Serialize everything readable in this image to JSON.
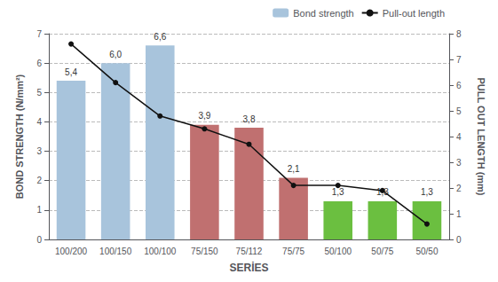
{
  "chart_data": {
    "type": "bar",
    "xlabel": "SERİES",
    "ylabel": "BOND STRENGTH (N/mm²)",
    "y2label": "PULL OUT LENGTH (mm)",
    "categories": [
      "100/200",
      "100/150",
      "100/100",
      "75/150",
      "75/112",
      "75/75",
      "50/100",
      "50/75",
      "50/50"
    ],
    "series": [
      {
        "name": "Bond strength",
        "type": "bar",
        "color": "#a8c4dc",
        "colors": [
          "#a8c4dc",
          "#a8c4dc",
          "#a8c4dc",
          "#c07070",
          "#c07070",
          "#c07070",
          "#6bbf40",
          "#6bbf40",
          "#6bbf40"
        ],
        "values": [
          5.4,
          6.0,
          6.6,
          3.9,
          3.8,
          2.1,
          1.3,
          1.3,
          1.3
        ],
        "value_labels": [
          "5,4",
          "6,0",
          "6,6",
          "3,9",
          "3,8",
          "2,1",
          "1,3",
          "1,3",
          "1,3"
        ],
        "data_labels": true
      },
      {
        "name": "Pull-out length",
        "type": "line",
        "color": "#111111",
        "marker": "circle",
        "axis": "y2",
        "values": [
          7.6,
          6.1,
          4.8,
          4.3,
          3.7,
          2.1,
          2.1,
          1.9,
          0.6
        ]
      }
    ],
    "ylim": [
      0,
      7
    ],
    "yticks": [
      0,
      1,
      2,
      3,
      4,
      5,
      6,
      7
    ],
    "y2lim": [
      0,
      8
    ],
    "y2ticks": [
      0,
      1,
      2,
      3,
      4,
      5,
      6,
      7,
      8
    ],
    "grid": true,
    "legend": "upper right"
  }
}
